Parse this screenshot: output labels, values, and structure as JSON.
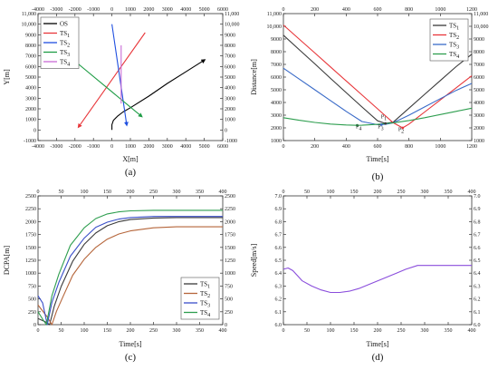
{
  "chart_data": [
    {
      "panel_label": "(a)",
      "type": "line",
      "xlabel": "X[m]",
      "ylabel": "Y[m]",
      "xlim": [
        -4000,
        6000
      ],
      "ylim": [
        -1000,
        11000
      ],
      "x_ticks": [
        "-4000",
        "-3000",
        "-2000",
        "-1000",
        "0",
        "1000",
        "2000",
        "3000",
        "4000",
        "5000",
        "6000"
      ],
      "x_top_ticks": [
        "-4000",
        "-3000",
        "-2000",
        "-1000",
        "0",
        "1000",
        "2000",
        "3000",
        "4000",
        "5000",
        "6000"
      ],
      "y_ticks": [
        "-1000",
        "0",
        "1000",
        "2000",
        "3000",
        "4000",
        "5000",
        "6000",
        "7000",
        "8000",
        "9000",
        "10,000",
        "11,000"
      ],
      "y_right_ticks": [
        "-1000",
        "0",
        "1000",
        "2000",
        "3000",
        "4000",
        "5000",
        "6000",
        "7000",
        "8000",
        "9000",
        "10,000",
        "11,000"
      ],
      "legend_position": "top-left",
      "series": [
        {
          "name": "OS",
          "color": "#000000",
          "x": [
            0,
            0,
            80,
            300,
            600,
            1000,
            2000,
            3000,
            4000,
            5000
          ],
          "y": [
            0,
            500,
            900,
            1300,
            1700,
            2100,
            3200,
            4400,
            5500,
            6600
          ],
          "arrow": "end"
        },
        {
          "name": "TS1",
          "color": "#e8363a",
          "x": [
            1800,
            -1800
          ],
          "y": [
            9200,
            300
          ],
          "arrow": "end"
        },
        {
          "name": "TS2",
          "color": "#1f4fe0",
          "x": [
            0,
            800
          ],
          "y": [
            10000,
            500
          ],
          "arrow": "end"
        },
        {
          "name": "TS3",
          "color": "#1e9c45",
          "x": [
            -2000,
            1600
          ],
          "y": [
            6500,
            1300
          ],
          "arrow": "end"
        },
        {
          "name": "TS4",
          "color": "#c86ad6",
          "x": [
            500,
            500
          ],
          "y": [
            8000,
            2500
          ],
          "arrow": "none"
        }
      ]
    },
    {
      "panel_label": "(b)",
      "type": "line",
      "xlabel": "Time[s]",
      "ylabel": "Distance[m]",
      "xlim": [
        0,
        1200
      ],
      "ylim": [
        1000,
        11000
      ],
      "x_ticks": [
        "0",
        "200",
        "400",
        "600",
        "800",
        "1000",
        "1200"
      ],
      "x_top_ticks": [
        "0",
        "200",
        "400",
        "600",
        "800",
        "1000",
        "1200"
      ],
      "y_ticks": [
        "1000",
        "2000",
        "3000",
        "4000",
        "5000",
        "6000",
        "7000",
        "8000",
        "9000",
        "10,000",
        "11,000"
      ],
      "y_right_ticks": [
        "1000",
        "2000",
        "3000",
        "4000",
        "5000",
        "6000",
        "7000",
        "8000",
        "9000",
        "10,000",
        "11,000"
      ],
      "legend_position": "top-right",
      "series": [
        {
          "name": "TS1",
          "color": "#3a3a3a",
          "x": [
            0,
            100,
            200,
            300,
            400,
            500,
            600,
            650,
            700,
            800,
            900,
            1000,
            1100,
            1200
          ],
          "y": [
            9300,
            8170,
            7040,
            5900,
            4780,
            3650,
            2560,
            2350,
            2450,
            3550,
            4640,
            5730,
            6820,
            7800
          ]
        },
        {
          "name": "TS2",
          "color": "#e8363a",
          "x": [
            0,
            100,
            200,
            300,
            400,
            500,
            600,
            700,
            760,
            800,
            900,
            1000,
            1100,
            1200
          ],
          "y": [
            10100,
            9000,
            7900,
            6800,
            5700,
            4600,
            3500,
            2400,
            2000,
            2300,
            3250,
            4200,
            5150,
            6100
          ]
        },
        {
          "name": "TS3",
          "color": "#3a6bc8",
          "x": [
            0,
            100,
            200,
            300,
            400,
            500,
            600,
            650,
            700,
            800,
            900,
            1000,
            1100,
            1200
          ],
          "y": [
            6700,
            5850,
            5000,
            4150,
            3300,
            2500,
            2250,
            2280,
            2400,
            3000,
            3650,
            4300,
            4950,
            5500
          ]
        },
        {
          "name": "TS4",
          "color": "#2e9e4f",
          "x": [
            0,
            100,
            200,
            300,
            400,
            470,
            500,
            600,
            700,
            800,
            900,
            1000,
            1100,
            1200
          ],
          "y": [
            2800,
            2600,
            2430,
            2300,
            2230,
            2200,
            2210,
            2280,
            2400,
            2580,
            2800,
            3050,
            3300,
            3550
          ]
        }
      ],
      "annotations": [
        {
          "text": "P1",
          "x": 640,
          "y": 2750
        },
        {
          "text": "P2",
          "x": 750,
          "y": 1750
        },
        {
          "text": "P3",
          "x": 620,
          "y": 1950
        },
        {
          "text": "P4",
          "x": 480,
          "y": 1950
        }
      ],
      "markers": [
        {
          "x": 650,
          "y": 2350,
          "color": "#3a3a3a"
        },
        {
          "x": 760,
          "y": 2000,
          "color": "#e8363a"
        },
        {
          "x": 625,
          "y": 2250,
          "color": "#3a6bc8"
        },
        {
          "x": 470,
          "y": 2200,
          "color": "#2e9e4f"
        }
      ]
    },
    {
      "panel_label": "(c)",
      "type": "line",
      "xlabel": "Time[s]",
      "ylabel": "DCPA[m]",
      "xlim": [
        0,
        400
      ],
      "ylim": [
        0,
        2500
      ],
      "x_ticks": [
        "0",
        "50",
        "100",
        "150",
        "200",
        "250",
        "300",
        "350",
        "400"
      ],
      "x_top_ticks": [
        "0",
        "50",
        "100",
        "150",
        "200",
        "250",
        "300",
        "350",
        "400"
      ],
      "y_ticks": [
        "0",
        "250",
        "500",
        "750",
        "1000",
        "1250",
        "1500",
        "1750",
        "2000",
        "2250",
        "2500"
      ],
      "y_right_ticks": [
        "0",
        "250",
        "500",
        "750",
        "1000",
        "1250",
        "1500",
        "1750",
        "2000",
        "2250",
        "2500"
      ],
      "legend_position": "lower-right",
      "series": [
        {
          "name": "TS1",
          "color": "#3a3a3a",
          "x": [
            0,
            15,
            25,
            35,
            50,
            75,
            100,
            125,
            150,
            175,
            200,
            250,
            300,
            400
          ],
          "y": [
            120,
            60,
            0,
            350,
            740,
            1230,
            1560,
            1780,
            1920,
            2000,
            2040,
            2070,
            2080,
            2080
          ]
        },
        {
          "name": "TS2",
          "color": "#b5653a",
          "x": [
            0,
            20,
            30,
            40,
            55,
            75,
            100,
            125,
            150,
            175,
            200,
            250,
            300,
            400
          ],
          "y": [
            380,
            150,
            0,
            260,
            560,
            960,
            1270,
            1500,
            1660,
            1760,
            1820,
            1880,
            1900,
            1900
          ]
        },
        {
          "name": "TS3",
          "color": "#3a4fc8",
          "x": [
            0,
            10,
            20,
            30,
            45,
            70,
            100,
            125,
            150,
            175,
            200,
            250,
            300,
            400
          ],
          "y": [
            560,
            420,
            0,
            430,
            820,
            1330,
            1680,
            1890,
            1990,
            2050,
            2080,
            2100,
            2100,
            2100
          ]
        },
        {
          "name": "TS4",
          "color": "#2e9e4f",
          "x": [
            0,
            12,
            18,
            30,
            45,
            70,
            100,
            125,
            150,
            175,
            200,
            250,
            300,
            400
          ],
          "y": [
            250,
            80,
            0,
            560,
            980,
            1540,
            1880,
            2060,
            2150,
            2190,
            2210,
            2220,
            2220,
            2220
          ]
        }
      ]
    },
    {
      "panel_label": "(d)",
      "type": "line",
      "xlabel": "Time[s]",
      "ylabel": "Speed[m/s]",
      "xlim": [
        0,
        400
      ],
      "ylim": [
        6.0,
        7.0
      ],
      "x_ticks": [
        "0",
        "50",
        "100",
        "150",
        "200",
        "250",
        "300",
        "350",
        "400"
      ],
      "x_top_ticks": [
        "0",
        "50",
        "100",
        "150",
        "200",
        "250",
        "300",
        "350",
        "400"
      ],
      "y_ticks": [
        "6.0",
        "6.1",
        "6.2",
        "6.3",
        "6.4",
        "6.5",
        "6.6",
        "6.7",
        "6.8",
        "6.9",
        "7.0"
      ],
      "y_right_ticks": [
        "6.0",
        "6.1",
        "6.2",
        "6.3",
        "6.4",
        "6.5",
        "6.6",
        "6.7",
        "6.8",
        "6.9",
        "7.0"
      ],
      "series": [
        {
          "name": "",
          "color": "#8a4ddc",
          "x": [
            0,
            10,
            20,
            30,
            40,
            60,
            80,
            100,
            120,
            140,
            160,
            180,
            200,
            220,
            240,
            260,
            285,
            300,
            350,
            400
          ],
          "y": [
            6.43,
            6.44,
            6.42,
            6.38,
            6.34,
            6.3,
            6.27,
            6.25,
            6.25,
            6.26,
            6.28,
            6.31,
            6.34,
            6.37,
            6.4,
            6.43,
            6.46,
            6.46,
            6.46,
            6.46
          ]
        }
      ]
    }
  ]
}
